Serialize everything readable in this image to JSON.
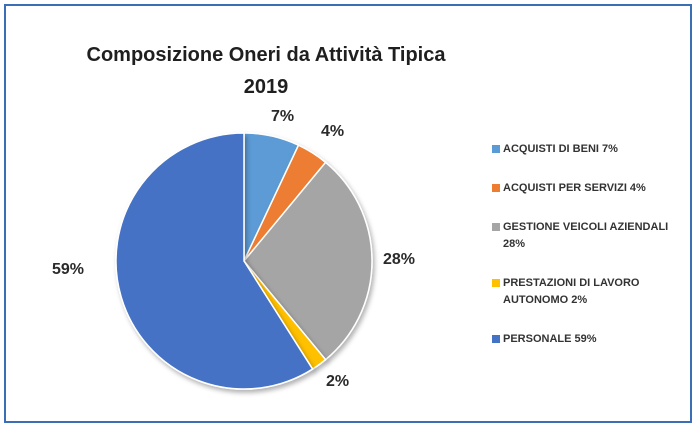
{
  "chart_data": {
    "type": "pie",
    "title": "Composizione Oneri da Attività Tipica",
    "subtitle": "2019",
    "legend_position": "right",
    "slices": [
      {
        "name": "ACQUISTI DI BENI 7%",
        "value": 7,
        "label": "7%",
        "color": "#5b9bd5"
      },
      {
        "name": "ACQUISTI PER SERVIZI 4%",
        "value": 4,
        "label": "4%",
        "color": "#ed7d31"
      },
      {
        "name": "GESTIONE VEICOLI AZIENDALI 28%",
        "value": 28,
        "label": "28%",
        "color": "#a5a5a5"
      },
      {
        "name": "PRESTAZIONI DI LAVORO AUTONOMO 2%",
        "value": 2,
        "label": "2%",
        "color": "#ffc000"
      },
      {
        "name": "PERSONALE 59%",
        "value": 59,
        "label": "59%",
        "color": "#4472c4"
      }
    ]
  }
}
